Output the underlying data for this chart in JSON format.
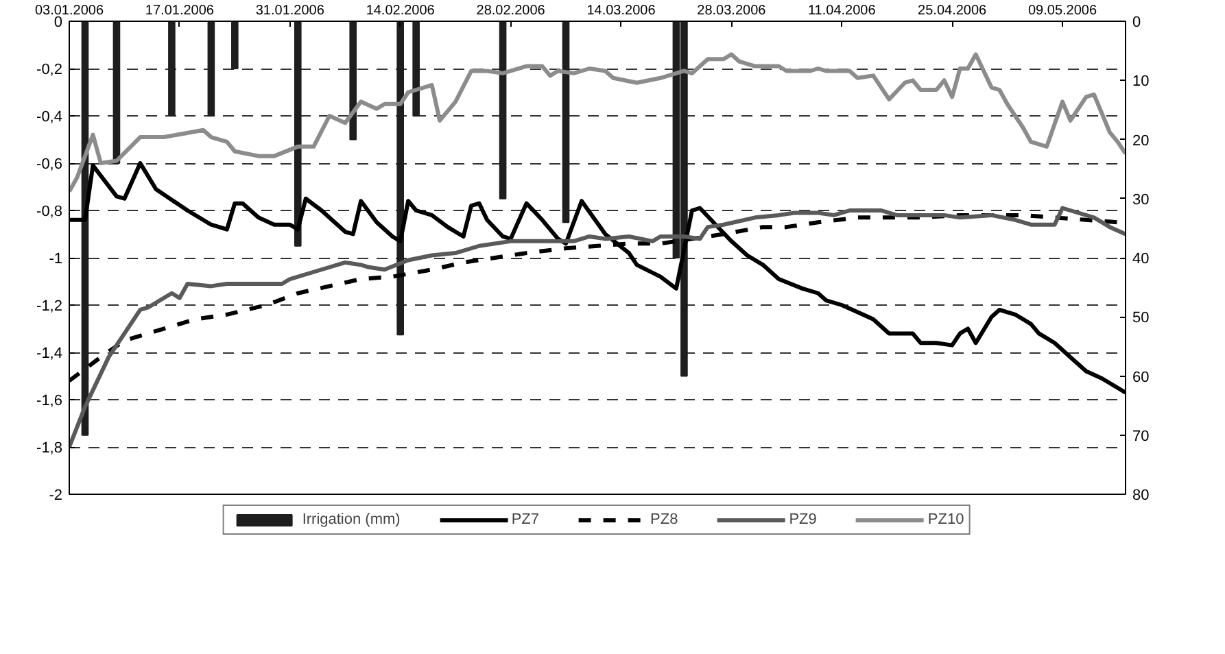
{
  "chart_data": {
    "type": "line",
    "xlim": [
      "2006-01-03",
      "2006-05-17"
    ],
    "xticks": [
      {
        "value": "2006-01-03",
        "label": "03.01.2006"
      },
      {
        "value": "2006-01-17",
        "label": "17.01.2006"
      },
      {
        "value": "2006-01-31",
        "label": "31.01.2006"
      },
      {
        "value": "2006-02-14",
        "label": "14.02.2006"
      },
      {
        "value": "2006-02-28",
        "label": "28.02.2006"
      },
      {
        "value": "2006-03-14",
        "label": "14.03.2006"
      },
      {
        "value": "2006-03-28",
        "label": "28.03.2006"
      },
      {
        "value": "2006-04-11",
        "label": "11.04.2006"
      },
      {
        "value": "2006-04-25",
        "label": "25.04.2006"
      },
      {
        "value": "2006-05-09",
        "label": "09.05.2006"
      }
    ],
    "ylim": [
      -2,
      0
    ],
    "yticks": [
      {
        "value": -2,
        "label": "-2"
      },
      {
        "value": -1.8,
        "label": "-1,8"
      },
      {
        "value": -1.6,
        "label": "-1,6"
      },
      {
        "value": -1.4,
        "label": "-1,4"
      },
      {
        "value": -1.2,
        "label": "-1,2"
      },
      {
        "value": -1,
        "label": "-1"
      },
      {
        "value": -0.8,
        "label": "-0,8"
      },
      {
        "value": -0.6,
        "label": "-0,6"
      },
      {
        "value": -0.4,
        "label": "-0,4"
      },
      {
        "value": -0.2,
        "label": "-0,2"
      },
      {
        "value": 0,
        "label": "0"
      }
    ],
    "y2lim": [
      80,
      0
    ],
    "y2ticks": [
      0,
      10,
      20,
      30,
      40,
      50,
      60,
      70,
      80
    ],
    "grid": "y",
    "legend": "bottom",
    "series": [
      {
        "name": "Irrigation (mm)",
        "type": "bar",
        "axis": "y2",
        "color": "#1e1e1e",
        "x": [
          "2006-01-05",
          "2006-01-09",
          "2006-01-16",
          "2006-01-21",
          "2006-01-24",
          "2006-02-01",
          "2006-02-08",
          "2006-02-14",
          "2006-02-16",
          "2006-02-27",
          "2006-03-07",
          "2006-03-21",
          "2006-03-22"
        ],
        "values": [
          70,
          24,
          16,
          16,
          8,
          38,
          20,
          53,
          16,
          30,
          34,
          40,
          60
        ]
      },
      {
        "name": "PZ7",
        "color": "#000000",
        "line_style": "solid",
        "x": [
          "2006-01-03",
          "2006-01-05",
          "2006-01-06",
          "2006-01-09",
          "2006-01-10",
          "2006-01-12",
          "2006-01-14",
          "2006-01-18",
          "2006-01-21",
          "2006-01-23",
          "2006-01-24",
          "2006-01-25",
          "2006-01-27",
          "2006-01-29",
          "2006-01-31",
          "2006-02-01",
          "2006-02-02",
          "2006-02-04",
          "2006-02-07",
          "2006-02-08",
          "2006-02-09",
          "2006-02-11",
          "2006-02-13",
          "2006-02-14",
          "2006-02-15",
          "2006-02-16",
          "2006-02-18",
          "2006-02-20",
          "2006-02-22",
          "2006-02-23",
          "2006-02-24",
          "2006-02-25",
          "2006-02-27",
          "2006-02-28",
          "2006-03-02",
          "2006-03-04",
          "2006-03-06",
          "2006-03-07",
          "2006-03-09",
          "2006-03-12",
          "2006-03-15",
          "2006-03-16",
          "2006-03-19",
          "2006-03-21",
          "2006-03-23",
          "2006-03-24",
          "2006-03-26",
          "2006-03-28",
          "2006-03-30",
          "2006-04-01",
          "2006-04-03",
          "2006-04-06",
          "2006-04-08",
          "2006-04-09",
          "2006-04-11",
          "2006-04-13",
          "2006-04-15",
          "2006-04-17",
          "2006-04-20",
          "2006-04-21",
          "2006-04-23",
          "2006-04-25",
          "2006-04-26",
          "2006-04-27",
          "2006-04-28",
          "2006-04-30",
          "2006-05-01",
          "2006-05-03",
          "2006-05-05",
          "2006-05-06",
          "2006-05-08",
          "2006-05-10",
          "2006-05-12",
          "2006-05-14",
          "2006-05-16",
          "2006-05-17"
        ],
        "values": [
          -0.84,
          -0.84,
          -0.61,
          -0.74,
          -0.75,
          -0.6,
          -0.71,
          -0.8,
          -0.86,
          -0.88,
          -0.77,
          -0.77,
          -0.83,
          -0.86,
          -0.86,
          -0.88,
          -0.75,
          -0.8,
          -0.89,
          -0.9,
          -0.76,
          -0.85,
          -0.91,
          -0.93,
          -0.76,
          -0.8,
          -0.82,
          -0.87,
          -0.91,
          -0.78,
          -0.77,
          -0.84,
          -0.91,
          -0.92,
          -0.77,
          -0.84,
          -0.92,
          -0.94,
          -0.76,
          -0.9,
          -0.98,
          -1.03,
          -1.08,
          -1.13,
          -0.8,
          -0.79,
          -0.86,
          -0.93,
          -0.99,
          -1.03,
          -1.09,
          -1.13,
          -1.15,
          -1.18,
          -1.2,
          -1.23,
          -1.26,
          -1.32,
          -1.32,
          -1.36,
          -1.36,
          -1.37,
          -1.32,
          -1.3,
          -1.36,
          -1.25,
          -1.22,
          -1.24,
          -1.28,
          -1.32,
          -1.36,
          -1.42,
          -1.48,
          -1.51,
          -1.55,
          -1.57
        ]
      },
      {
        "name": "PZ8",
        "color": "#000000",
        "line_style": "dashed",
        "x": [
          "2006-01-03",
          "2006-01-07",
          "2006-01-10",
          "2006-01-14",
          "2006-01-19",
          "2006-01-23",
          "2006-01-28",
          "2006-02-01",
          "2006-02-05",
          "2006-02-09",
          "2006-02-13",
          "2006-02-18",
          "2006-02-22",
          "2006-02-26",
          "2006-03-02",
          "2006-03-07",
          "2006-03-11",
          "2006-03-15",
          "2006-03-19",
          "2006-03-23",
          "2006-03-27",
          "2006-04-01",
          "2006-04-04",
          "2006-04-08",
          "2006-04-13",
          "2006-04-17",
          "2006-04-21",
          "2006-04-26",
          "2006-05-04",
          "2006-05-08",
          "2006-05-12",
          "2006-05-16"
        ],
        "values": [
          -1.52,
          -1.42,
          -1.35,
          -1.31,
          -1.26,
          -1.24,
          -1.2,
          -1.15,
          -1.12,
          -1.09,
          -1.08,
          -1.05,
          -1.02,
          -1.0,
          -0.98,
          -0.96,
          -0.95,
          -0.94,
          -0.94,
          -0.92,
          -0.9,
          -0.87,
          -0.87,
          -0.85,
          -0.83,
          -0.83,
          -0.83,
          -0.82,
          -0.82,
          -0.83,
          -0.84,
          -0.85
        ]
      },
      {
        "name": "PZ9",
        "color": "#5a5a5a",
        "line_style": "solid",
        "x": [
          "2006-01-03",
          "2006-01-05",
          "2006-01-08",
          "2006-01-12",
          "2006-01-13",
          "2006-01-16",
          "2006-01-17",
          "2006-01-18",
          "2006-01-21",
          "2006-01-23",
          "2006-01-30",
          "2006-01-31",
          "2006-02-04",
          "2006-02-07",
          "2006-02-09",
          "2006-02-10",
          "2006-02-12",
          "2006-02-15",
          "2006-02-18",
          "2006-02-21",
          "2006-02-24",
          "2006-02-28",
          "2006-03-08",
          "2006-03-10",
          "2006-03-12",
          "2006-03-15",
          "2006-03-18",
          "2006-03-19",
          "2006-03-22",
          "2006-03-24",
          "2006-03-25",
          "2006-03-27",
          "2006-03-31",
          "2006-04-03",
          "2006-04-05",
          "2006-04-08",
          "2006-04-10",
          "2006-04-12",
          "2006-04-16",
          "2006-04-18",
          "2006-04-24",
          "2006-04-26",
          "2006-04-30",
          "2006-05-03",
          "2006-05-05",
          "2006-05-08",
          "2006-05-09",
          "2006-05-10",
          "2006-05-13",
          "2006-05-15",
          "2006-05-17"
        ],
        "values": [
          -1.8,
          -1.63,
          -1.42,
          -1.22,
          -1.21,
          -1.15,
          -1.17,
          -1.11,
          -1.12,
          -1.11,
          -1.11,
          -1.09,
          -1.05,
          -1.02,
          -1.03,
          -1.04,
          -1.05,
          -1.01,
          -0.99,
          -0.98,
          -0.95,
          -0.93,
          -0.93,
          -0.91,
          -0.92,
          -0.91,
          -0.93,
          -0.91,
          -0.91,
          -0.92,
          -0.87,
          -0.86,
          -0.83,
          -0.82,
          -0.81,
          -0.81,
          -0.82,
          -0.8,
          -0.8,
          -0.82,
          -0.82,
          -0.83,
          -0.82,
          -0.84,
          -0.86,
          -0.86,
          -0.79,
          -0.8,
          -0.83,
          -0.87,
          -0.9
        ]
      },
      {
        "name": "PZ10",
        "color": "#8c8c8c",
        "line_style": "solid",
        "x": [
          "2006-01-03",
          "2006-01-04",
          "2006-01-06",
          "2006-01-07",
          "2006-01-09",
          "2006-01-12",
          "2006-01-15",
          "2006-01-20",
          "2006-01-21",
          "2006-01-23",
          "2006-01-24",
          "2006-01-27",
          "2006-01-29",
          "2006-02-01",
          "2006-02-03",
          "2006-02-05",
          "2006-02-07",
          "2006-02-09",
          "2006-02-11",
          "2006-02-12",
          "2006-02-14",
          "2006-02-15",
          "2006-02-18",
          "2006-02-19",
          "2006-02-21",
          "2006-02-23",
          "2006-02-25",
          "2006-02-27",
          "2006-03-02",
          "2006-03-04",
          "2006-03-05",
          "2006-03-06",
          "2006-03-08",
          "2006-03-10",
          "2006-03-12",
          "2006-03-13",
          "2006-03-16",
          "2006-03-19",
          "2006-03-22",
          "2006-03-23",
          "2006-03-25",
          "2006-03-27",
          "2006-03-28",
          "2006-03-29",
          "2006-03-31",
          "2006-04-03",
          "2006-04-04",
          "2006-04-07",
          "2006-04-08",
          "2006-04-09",
          "2006-04-12",
          "2006-04-13",
          "2006-04-15",
          "2006-04-17",
          "2006-04-19",
          "2006-04-20",
          "2006-04-21",
          "2006-04-23",
          "2006-04-24",
          "2006-04-25",
          "2006-04-26",
          "2006-04-27",
          "2006-04-28",
          "2006-04-30",
          "2006-05-01",
          "2006-05-02",
          "2006-05-04",
          "2006-05-05",
          "2006-05-07",
          "2006-05-09",
          "2006-05-10",
          "2006-05-12",
          "2006-05-13",
          "2006-05-15",
          "2006-05-16",
          "2006-05-17"
        ],
        "values": [
          -0.72,
          -0.66,
          -0.48,
          -0.6,
          -0.59,
          -0.49,
          -0.49,
          -0.46,
          -0.49,
          -0.51,
          -0.55,
          -0.57,
          -0.57,
          -0.53,
          -0.53,
          -0.4,
          -0.43,
          -0.34,
          -0.37,
          -0.35,
          -0.35,
          -0.3,
          -0.27,
          -0.42,
          -0.34,
          -0.21,
          -0.21,
          -0.22,
          -0.19,
          -0.19,
          -0.23,
          -0.21,
          -0.22,
          -0.2,
          -0.21,
          -0.24,
          -0.26,
          -0.24,
          -0.21,
          -0.22,
          -0.16,
          -0.16,
          -0.14,
          -0.17,
          -0.19,
          -0.19,
          -0.21,
          -0.21,
          -0.2,
          -0.21,
          -0.21,
          -0.24,
          -0.23,
          -0.33,
          -0.26,
          -0.25,
          -0.29,
          -0.29,
          -0.25,
          -0.32,
          -0.2,
          -0.2,
          -0.14,
          -0.28,
          -0.29,
          -0.35,
          -0.45,
          -0.51,
          -0.53,
          -0.34,
          -0.42,
          -0.32,
          -0.31,
          -0.47,
          -0.51,
          -0.56
        ]
      }
    ]
  }
}
